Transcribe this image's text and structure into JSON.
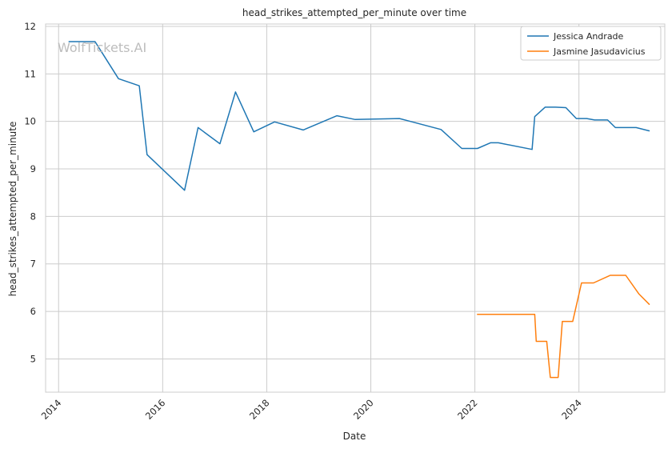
{
  "watermark": "WolfTickets.AI",
  "chart_data": {
    "type": "line",
    "title": "head_strikes_attempted_per_minute over time",
    "xlabel": "Date",
    "ylabel": "head_strikes_attempted_per_minute",
    "xlim": [
      2013.75,
      2025.65
    ],
    "ylim": [
      4.3,
      12.05
    ],
    "xticks": [
      {
        "value": 2014,
        "label": "2014"
      },
      {
        "value": 2016,
        "label": "2016"
      },
      {
        "value": 2018,
        "label": "2018"
      },
      {
        "value": 2020,
        "label": "2020"
      },
      {
        "value": 2022,
        "label": "2022"
      },
      {
        "value": 2024,
        "label": "2024"
      }
    ],
    "yticks": [
      {
        "value": 5,
        "label": "5"
      },
      {
        "value": 6,
        "label": "6"
      },
      {
        "value": 7,
        "label": "7"
      },
      {
        "value": 8,
        "label": "8"
      },
      {
        "value": 9,
        "label": "9"
      },
      {
        "value": 10,
        "label": "10"
      },
      {
        "value": 11,
        "label": "11"
      },
      {
        "value": 12,
        "label": "12"
      }
    ],
    "grid": true,
    "legend_position": "top-right",
    "series": [
      {
        "name": "Jessica Andrade",
        "color": "#1f77b4",
        "points": [
          [
            2014.2,
            11.68
          ],
          [
            2014.7,
            11.68
          ],
          [
            2015.15,
            10.9
          ],
          [
            2015.55,
            10.75
          ],
          [
            2015.7,
            9.3
          ],
          [
            2016.42,
            8.55
          ],
          [
            2016.68,
            9.87
          ],
          [
            2017.1,
            9.53
          ],
          [
            2017.4,
            10.62
          ],
          [
            2017.75,
            9.78
          ],
          [
            2018.15,
            9.99
          ],
          [
            2018.7,
            9.82
          ],
          [
            2019.35,
            10.12
          ],
          [
            2019.7,
            10.04
          ],
          [
            2020.55,
            10.06
          ],
          [
            2021.35,
            9.83
          ],
          [
            2021.75,
            9.43
          ],
          [
            2022.05,
            9.43
          ],
          [
            2022.3,
            9.55
          ],
          [
            2022.45,
            9.55
          ],
          [
            2023.1,
            9.41
          ],
          [
            2023.15,
            10.1
          ],
          [
            2023.35,
            10.3
          ],
          [
            2023.55,
            10.3
          ],
          [
            2023.75,
            10.29
          ],
          [
            2023.95,
            10.06
          ],
          [
            2024.15,
            10.06
          ],
          [
            2024.3,
            10.03
          ],
          [
            2024.55,
            10.03
          ],
          [
            2024.7,
            9.87
          ],
          [
            2025.1,
            9.87
          ],
          [
            2025.35,
            9.8
          ]
        ]
      },
      {
        "name": "Jasmine Jasudavicius",
        "color": "#ff7f0e",
        "points": [
          [
            2022.05,
            5.94
          ],
          [
            2023.15,
            5.94
          ],
          [
            2023.18,
            5.37
          ],
          [
            2023.38,
            5.37
          ],
          [
            2023.45,
            4.61
          ],
          [
            2023.6,
            4.61
          ],
          [
            2023.68,
            5.79
          ],
          [
            2023.88,
            5.79
          ],
          [
            2024.05,
            6.6
          ],
          [
            2024.28,
            6.6
          ],
          [
            2024.6,
            6.76
          ],
          [
            2024.9,
            6.76
          ],
          [
            2025.15,
            6.37
          ],
          [
            2025.35,
            6.15
          ]
        ]
      }
    ]
  }
}
